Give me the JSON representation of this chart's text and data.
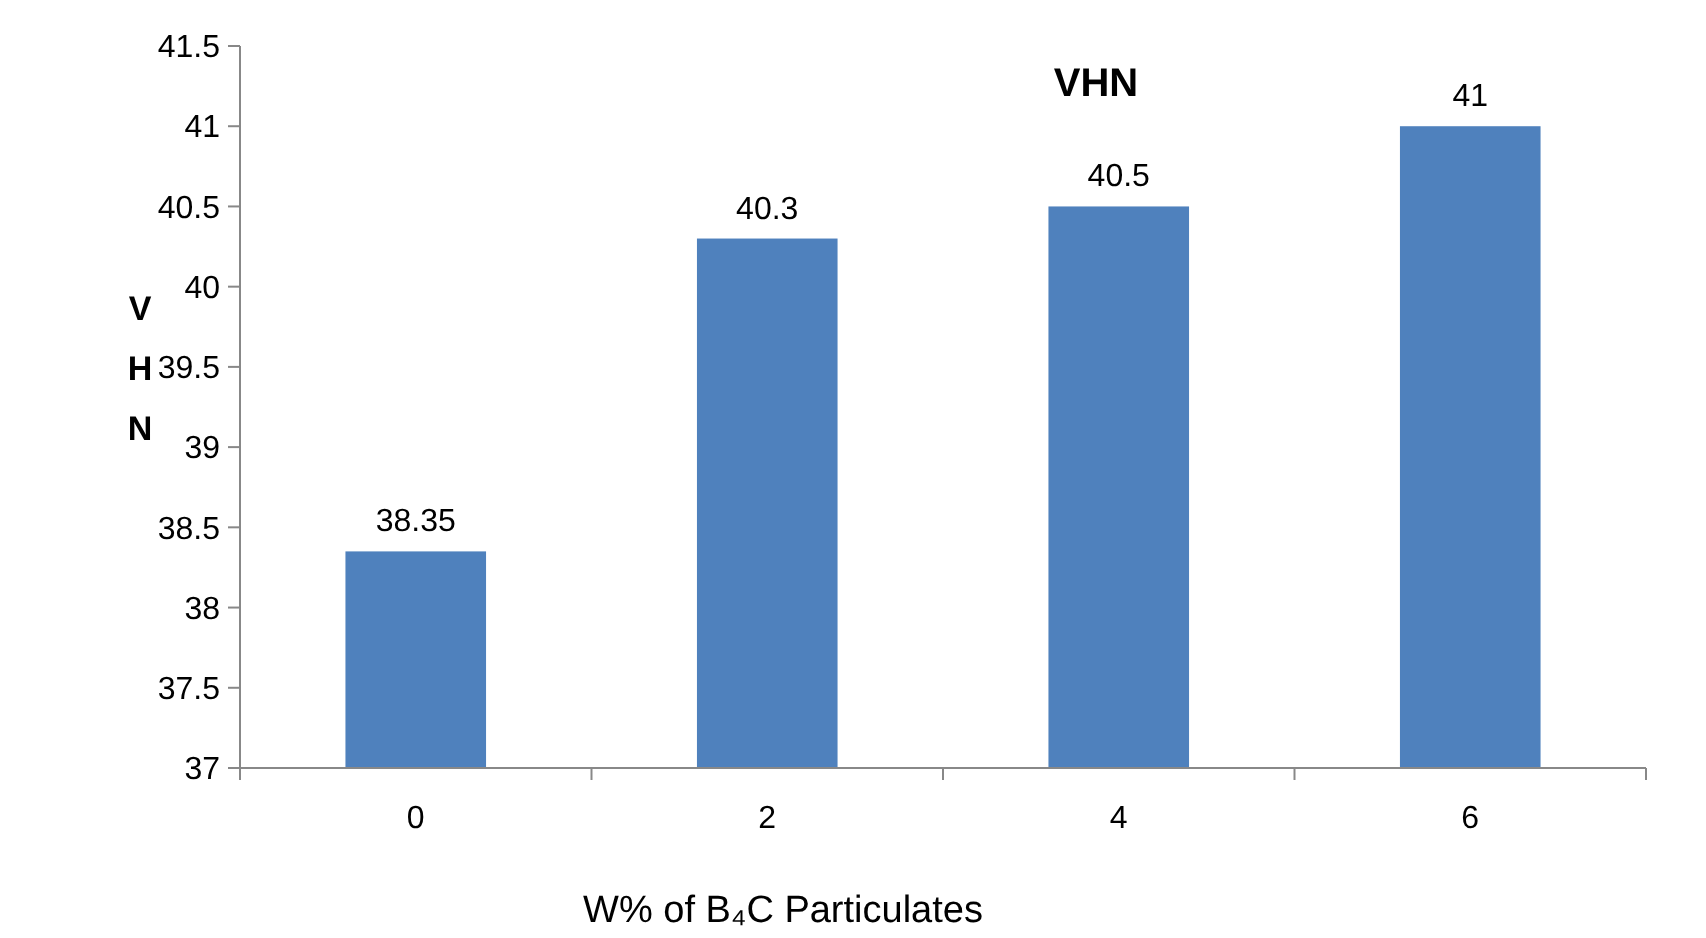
{
  "chart_data": {
    "type": "bar",
    "title": "VHN",
    "xlabel": "W% of B₄C Particulates",
    "ylabel": "VHN",
    "categories": [
      "0",
      "2",
      "4",
      "6"
    ],
    "values": [
      38.35,
      40.3,
      40.5,
      41
    ],
    "color": "#4f81bd",
    "ylim": [
      37,
      41.5
    ],
    "yticks": [
      37,
      37.5,
      38,
      38.5,
      39,
      39.5,
      40,
      40.5,
      41,
      41.5
    ],
    "data_labels": true,
    "grid": false
  }
}
